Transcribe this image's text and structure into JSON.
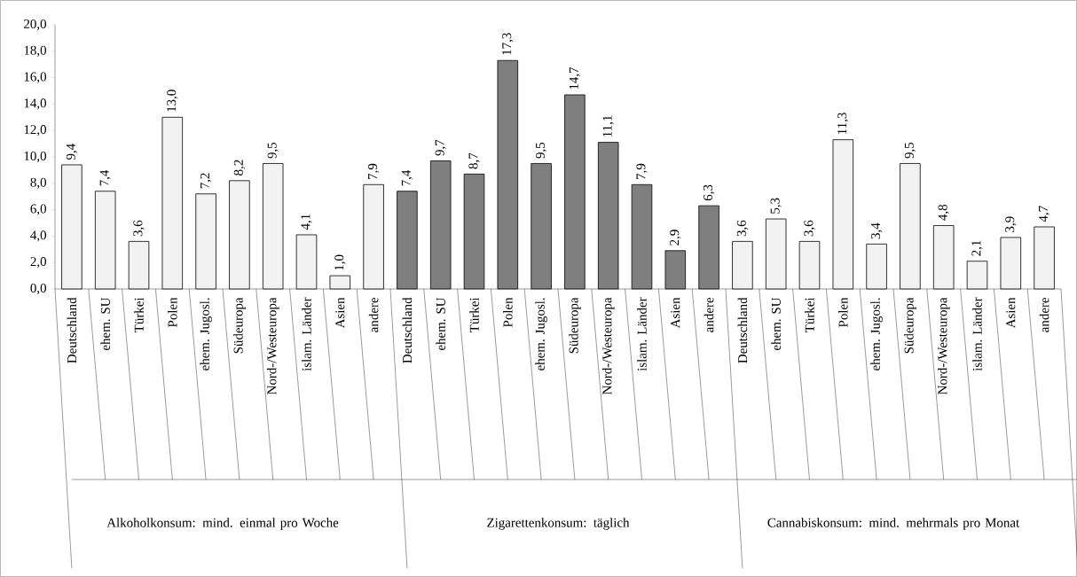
{
  "chart_data": {
    "type": "bar",
    "categories": [
      "Deutschland",
      "ehem. SU",
      "Türkei",
      "Polen",
      "ehem. Jugosl.",
      "Südeuropa",
      "Nord-/Westeuropa",
      "islam. Länder",
      "Asien",
      "andere",
      "Deutschland",
      "ehem. SU",
      "Türkei",
      "Polen",
      "ehem. Jugosl.",
      "Südeuropa",
      "Nord-/Westeuropa",
      "islam. Länder",
      "Asien",
      "andere",
      "Deutschland",
      "ehem. SU",
      "Türkei",
      "Polen",
      "ehem. Jugosl.",
      "Südeuropa",
      "Nord-/Westeuropa",
      "islam. Länder",
      "Asien",
      "andere"
    ],
    "values": [
      9.4,
      7.4,
      3.6,
      13.0,
      7.2,
      8.2,
      9.5,
      4.1,
      1.0,
      7.9,
      7.4,
      9.7,
      8.7,
      17.3,
      9.5,
      14.7,
      11.1,
      7.9,
      2.9,
      6.3,
      3.6,
      5.3,
      3.6,
      11.3,
      3.4,
      9.5,
      4.8,
      2.1,
      3.9,
      4.7
    ],
    "value_labels": [
      "9,4",
      "7,4",
      "3,6",
      "13,0",
      "7,2",
      "8,2",
      "9,5",
      "4,1",
      "1,0",
      "7,9",
      "7,4",
      "9,7",
      "8,7",
      "17,3",
      "9,5",
      "14,7",
      "11,1",
      "7,9",
      "2,9",
      "6,3",
      "3,6",
      "5,3",
      "3,6",
      "11,3",
      "3,4",
      "9,5",
      "4,8",
      "2,1",
      "3,9",
      "4,7"
    ],
    "colors": [
      "#f2f2f2",
      "#f2f2f2",
      "#f2f2f2",
      "#f2f2f2",
      "#f2f2f2",
      "#f2f2f2",
      "#f2f2f2",
      "#f2f2f2",
      "#f2f2f2",
      "#f2f2f2",
      "#7f7f7f",
      "#7f7f7f",
      "#7f7f7f",
      "#7f7f7f",
      "#7f7f7f",
      "#7f7f7f",
      "#7f7f7f",
      "#7f7f7f",
      "#7f7f7f",
      "#7f7f7f",
      "#f2f2f2",
      "#f2f2f2",
      "#f2f2f2",
      "#f2f2f2",
      "#f2f2f2",
      "#f2f2f2",
      "#f2f2f2",
      "#f2f2f2",
      "#f2f2f2",
      "#f2f2f2"
    ],
    "ylim": [
      0,
      20
    ],
    "yticks": [
      {
        "value": 0,
        "label": "0,0"
      },
      {
        "value": 2,
        "label": "2,0"
      },
      {
        "value": 4,
        "label": "4,0"
      },
      {
        "value": 6,
        "label": "6,0"
      },
      {
        "value": 8,
        "label": "8,0"
      },
      {
        "value": 10,
        "label": "10,0"
      },
      {
        "value": 12,
        "label": "12,0"
      },
      {
        "value": 14,
        "label": "14,0"
      },
      {
        "value": 16,
        "label": "16,0"
      },
      {
        "value": 18,
        "label": "18,0"
      },
      {
        "value": 20,
        "label": "20,0"
      }
    ],
    "annotations": [
      "Alkoholkonsum: mind. einmal pro Woche",
      "Zigarettenkonsum: täglich",
      "Cannabiskonsum: mind. mehrmals pro Monat"
    ]
  }
}
